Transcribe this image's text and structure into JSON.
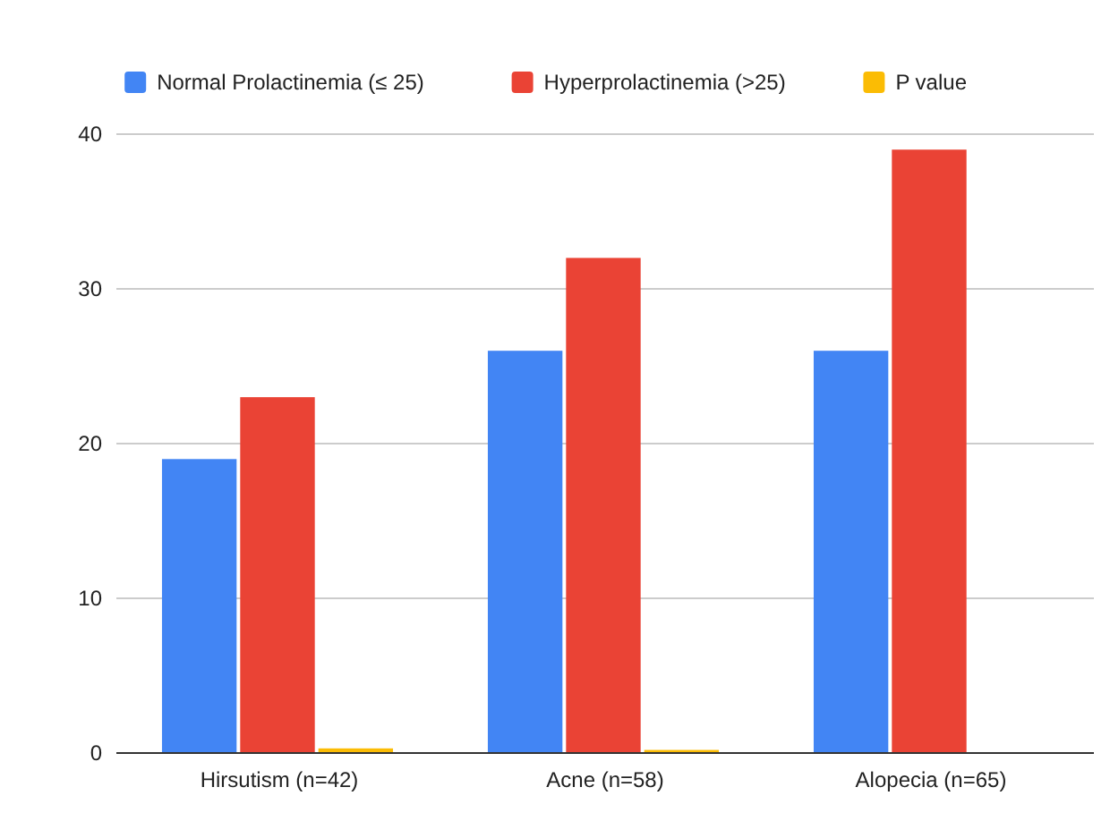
{
  "chart_data": {
    "type": "bar",
    "categories": [
      "Hirsutism (n=42)",
      "Acne (n=58)",
      "Alopecia (n=65)"
    ],
    "series": [
      {
        "name": "Normal Prolactinemia (≤ 25)",
        "color": "#4285f4",
        "values": [
          19,
          26,
          26
        ]
      },
      {
        "name": "Hyperprolactinemia (>25)",
        "color": "#ea4335",
        "values": [
          23,
          32,
          39
        ]
      },
      {
        "name": "P value",
        "color": "#fbbc04",
        "values": [
          0.3,
          0.2,
          0
        ]
      }
    ],
    "ylim": [
      0,
      40
    ],
    "yticks": [
      0,
      10,
      20,
      30,
      40
    ],
    "grid": "y",
    "legend": "top"
  }
}
